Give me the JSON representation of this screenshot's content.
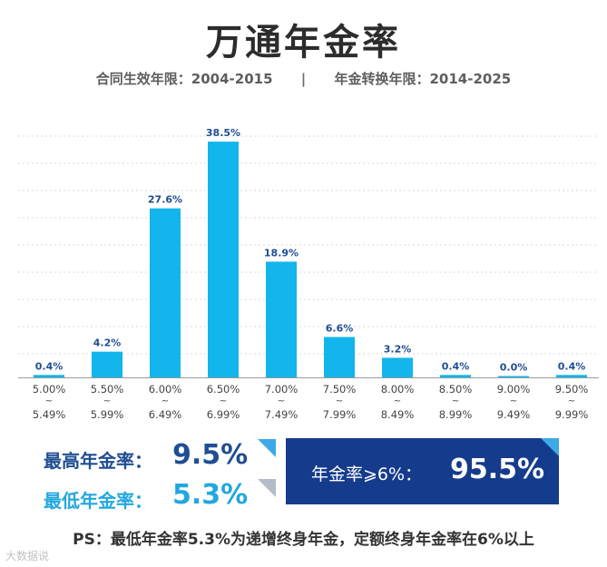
{
  "header": {
    "title": "万通年金率",
    "subtitle_left": "合同生效年限：2004-2015",
    "subtitle_sep": "|",
    "subtitle_right": "年金转换年限：2014-2025"
  },
  "chart_data": {
    "type": "bar",
    "categories": [
      [
        "5.00%",
        "~",
        "5.49%"
      ],
      [
        "5.50%",
        "~",
        "5.99%"
      ],
      [
        "6.00%",
        "~",
        "6.49%"
      ],
      [
        "6.50%",
        "~",
        "6.99%"
      ],
      [
        "7.00%",
        "~",
        "7.49%"
      ],
      [
        "7.50%",
        "~",
        "7.99%"
      ],
      [
        "8.00%",
        "~",
        "8.49%"
      ],
      [
        "8.50%",
        "~",
        "8.99%"
      ],
      [
        "9.00%",
        "~",
        "9.49%"
      ],
      [
        "9.50%",
        "~",
        "9.99%"
      ]
    ],
    "values": [
      0.4,
      4.2,
      27.6,
      38.5,
      18.9,
      6.6,
      3.2,
      0.4,
      0.0,
      0.4
    ],
    "value_labels": [
      "0.4%",
      "4.2%",
      "27.6%",
      "38.5%",
      "18.9%",
      "6.6%",
      "3.2%",
      "0.4%",
      "0.0%",
      "0.4%"
    ],
    "title": "",
    "xlabel": "",
    "ylabel": "",
    "ylim": [
      0,
      40
    ],
    "grid": true,
    "legend": "none",
    "bar_color": "#12b5ec",
    "label_color": "#1f4e93"
  },
  "stats": {
    "max_label": "最高年金率：",
    "max_value": "9.5%",
    "min_label": "最低年金率：",
    "min_value": "5.3%"
  },
  "highlight": {
    "label": "年金率⩾6%：",
    "value": "95.5%"
  },
  "footnote": "PS：最低年金率5.3%为递增终身年金，定额终身年金率在6%以上",
  "watermark": "大数据说"
}
